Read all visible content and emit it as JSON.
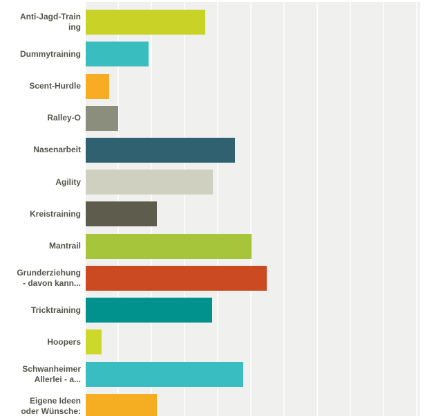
{
  "colors": {
    "page_background": "#ffffff",
    "plot_background": "#f0f0ee",
    "gridline": "#fbfbf9",
    "label_text": "#54554a"
  },
  "chart_data": {
    "type": "bar",
    "orientation": "horizontal",
    "xlim": [
      0,
      100
    ],
    "grid": true,
    "grid_step_percent": 10,
    "legend": false,
    "categories": [
      "Anti-Jagd-Training",
      "Dummytraining",
      "Scent-Hurdle",
      "Ralley-O",
      "Nasenarbeit",
      "Agility",
      "Kreistraining",
      "Mantrail",
      "Grunderziehung - davon kann...",
      "Tricktraining",
      "Hoopers",
      "Schwanheimer Allerlei - a...",
      "Eigene Ideen oder Wünsche:"
    ],
    "label_lines": [
      [
        "Anti-Jagd-Train",
        "ing"
      ],
      [
        "Dummytraining"
      ],
      [
        "Scent-Hurdle"
      ],
      [
        "Ralley-O"
      ],
      [
        "Nasenarbeit"
      ],
      [
        "Agility"
      ],
      [
        "Kreistraining"
      ],
      [
        "Mantrail"
      ],
      [
        "Grunderziehung",
        "- davon kann..."
      ],
      [
        "Tricktraining"
      ],
      [
        "Hoopers"
      ],
      [
        "Schwanheimer",
        "Allerlei - a..."
      ],
      [
        "Eigene Ideen",
        "oder Wünsche:"
      ]
    ],
    "values_percent": [
      36.0,
      19.0,
      7.1,
      9.7,
      45.1,
      38.4,
      21.4,
      49.9,
      54.6,
      38.1,
      4.7,
      47.6,
      21.4
    ],
    "bar_colors": [
      "#c9d227",
      "#39bdbf",
      "#f7ac23",
      "#8b8d7d",
      "#2f6170",
      "#d0d0c1",
      "#5e5c4c",
      "#a7c53a",
      "#cb4a21",
      "#02928d",
      "#ccd92b",
      "#3abdc0",
      "#f5ae22"
    ]
  }
}
